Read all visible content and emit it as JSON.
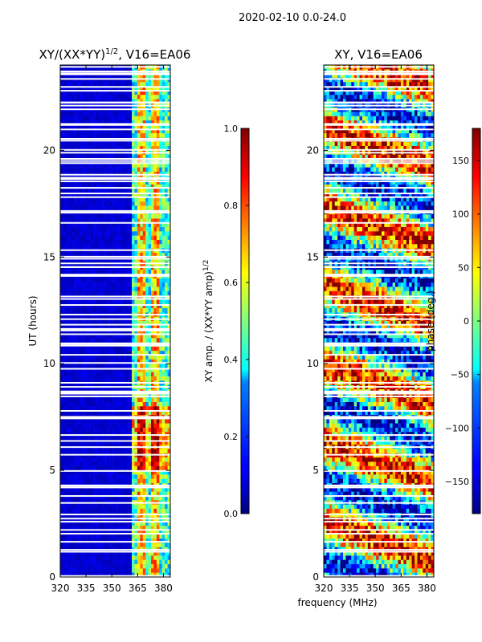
{
  "figure": {
    "suptitle": "2020-02-10 0.0-24.0",
    "xlabel": "frequency (MHz)"
  },
  "chart_data": [
    {
      "type": "heatmap",
      "title_prefix": "XY/(XX*YY)",
      "title_exponent": "1/2",
      "title_suffix": ", V16=EA06",
      "xlabel": "",
      "ylabel": "UT (hours)",
      "xlim": [
        320,
        384
      ],
      "ylim": [
        0,
        24
      ],
      "xticks": [
        320,
        335,
        350,
        365,
        380
      ],
      "yticks": [
        0,
        5,
        10,
        15,
        20
      ],
      "band_start_mhz": 361,
      "colorbar": {
        "label": "XY amp. / (XX*YY amp)",
        "label_exponent": "1/2",
        "range": [
          0.0,
          1.0
        ],
        "ticks": [
          "0.0",
          "0.2",
          "0.4",
          "0.6",
          "0.8",
          "1.0"
        ],
        "colormap": "jet"
      }
    },
    {
      "type": "heatmap",
      "title": "XY, V16=EA06",
      "xlabel": "frequency (MHz)",
      "ylabel": "",
      "xlim": [
        320,
        384
      ],
      "ylim": [
        0,
        24
      ],
      "xticks": [
        320,
        335,
        350,
        365,
        380
      ],
      "yticks": [
        0,
        5,
        10,
        15,
        20
      ],
      "colorbar": {
        "label": "phase (deg.)",
        "range": [
          -180,
          180
        ],
        "ticks": [
          "-150",
          "-100",
          "-50",
          "0",
          "50",
          "100",
          "150"
        ],
        "colormap": "jet"
      }
    }
  ]
}
